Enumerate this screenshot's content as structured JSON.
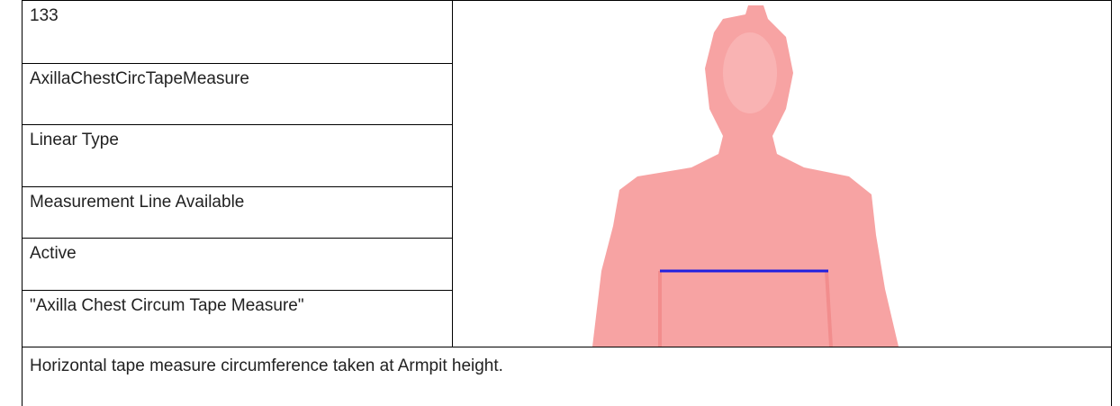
{
  "fields": [
    "133",
    "AxillaChestCircTapeMeasure",
    "Linear Type",
    "Measurement Line Available",
    "Active",
    "\"Axilla Chest Circum Tape Measure\""
  ],
  "description": "Horizontal tape measure circumference taken at Armpit height."
}
